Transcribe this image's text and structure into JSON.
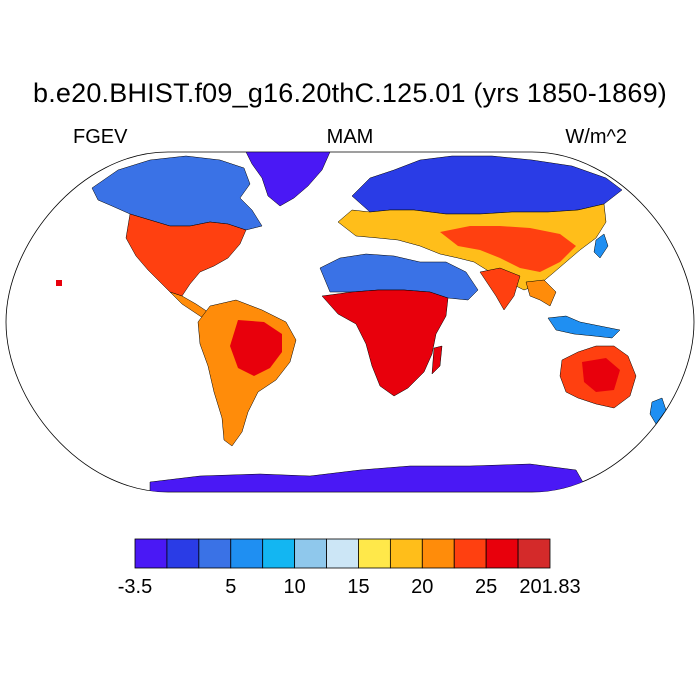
{
  "title": "b.e20.BHIST.f09_g16.20thC.125.01 (yrs 1850-1869)",
  "left_label": "FGEV",
  "center_label": "MAM",
  "right_label": "W/m^2",
  "colorbar": {
    "colors": [
      "#4a18f5",
      "#2a3ce6",
      "#3a72e6",
      "#1f8ff2",
      "#13b6f2",
      "#8fc8ec",
      "#cce6f6",
      "#ffe84a",
      "#ffbe1a",
      "#ff8c0a",
      "#ff4010",
      "#e8000c",
      "#d42a2a"
    ],
    "tick_labels": [
      {
        "after_box": 0,
        "text": "-3.5"
      },
      {
        "after_box": 3,
        "text": "5"
      },
      {
        "after_box": 5,
        "text": "10"
      },
      {
        "after_box": 7,
        "text": "15"
      },
      {
        "after_box": 9,
        "text": "20"
      },
      {
        "after_box": 11,
        "text": "25"
      },
      {
        "after_box": 13,
        "text": "201.83"
      }
    ]
  },
  "map": {
    "projection": "robinson",
    "ocean_color": "#ffffff",
    "coastline_color": "#000000",
    "regions": [
      {
        "name": "north-america-north",
        "color": "#3a72e6"
      },
      {
        "name": "greenland",
        "color": "#4a18f5"
      },
      {
        "name": "north-america-south",
        "color": "#ff4010"
      },
      {
        "name": "south-america",
        "color": "#ff8c0a"
      },
      {
        "name": "europe-asia-north",
        "color": "#3a72e6"
      },
      {
        "name": "asia-mid",
        "color": "#ffbe1a"
      },
      {
        "name": "sahara",
        "color": "#3a72e6"
      },
      {
        "name": "africa-south",
        "color": "#e8000c"
      },
      {
        "name": "australia",
        "color": "#ff4010"
      },
      {
        "name": "antarctica",
        "color": "#4a18f5"
      }
    ]
  }
}
